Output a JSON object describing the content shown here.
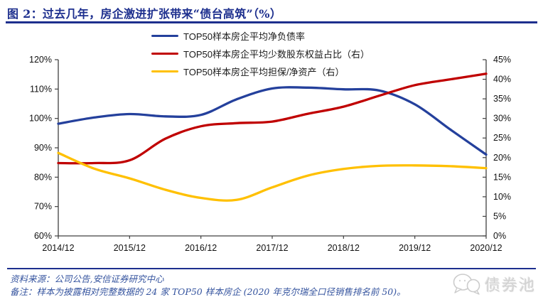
{
  "title": "图 2：过去几年，房企激进扩张带来“债台高筑”（%）",
  "legend": [
    {
      "label": "TOP50样本房企平均净负债率",
      "color": "#24409C"
    },
    {
      "label": "TOP50样本房企平均少数股东权益占比（右）",
      "color": "#C00000"
    },
    {
      "label": "TOP50样本房企平均担保/净资产（右）",
      "color": "#FFC000"
    }
  ],
  "chart_data": {
    "type": "line",
    "title": "图 2：过去几年，房企激进扩张带来“债台高筑”（%）",
    "x_tick_labels": [
      "2014/12",
      "2015/12",
      "2016/12",
      "2017/12",
      "2018/12",
      "2019/12",
      "2020/12"
    ],
    "sample_interval": "6 months from 2014/12 to 2020/12",
    "left_axis": {
      "min": 60,
      "max": 120,
      "step": 10,
      "tick_labels": [
        "60%",
        "70%",
        "80%",
        "90%",
        "100%",
        "110%",
        "120%"
      ]
    },
    "right_axis": {
      "min": 0,
      "max": 45,
      "step": 5,
      "tick_labels": [
        "0%",
        "5%",
        "10%",
        "15%",
        "20%",
        "25%",
        "30%",
        "35%",
        "40%",
        "45%"
      ]
    },
    "grid": "off",
    "legend_position": "top",
    "series": [
      {
        "name": "TOP50样本房企平均净负债率",
        "axis": "left",
        "color": "#24409C",
        "values": [
          98.2,
          100.3,
          101.5,
          100.7,
          101.2,
          106.5,
          110.2,
          110.5,
          109.9,
          109.5,
          104.8,
          96.2,
          87.7
        ]
      },
      {
        "name": "TOP50样本房企平均少数股东权益占比（右）",
        "axis": "right",
        "color": "#C00000",
        "values": [
          18.6,
          18.6,
          19.3,
          24.8,
          28.0,
          28.8,
          29.2,
          31.2,
          33.0,
          35.8,
          38.5,
          40.0,
          41.4
        ]
      },
      {
        "name": "TOP50样本房企平均担保/净资产（右）",
        "axis": "right",
        "color": "#FFC000",
        "values": [
          21.2,
          17.2,
          14.7,
          11.8,
          9.7,
          9.2,
          12.4,
          15.4,
          17.1,
          17.9,
          18.0,
          17.8,
          17.3
        ]
      }
    ]
  },
  "footer": {
    "source": "资料来源：公司公告,安信证券研究中心",
    "note": "备注：样本为披露相对完整数据的 24 家 TOP50 样本房企 (2020 年克尔瑞全口径销售排名前 50)。",
    "watermark": "债券池"
  },
  "colors": {
    "accent_navy": "#1D2F8E",
    "footer_text": "#35549F",
    "axis_line": "#404040"
  }
}
